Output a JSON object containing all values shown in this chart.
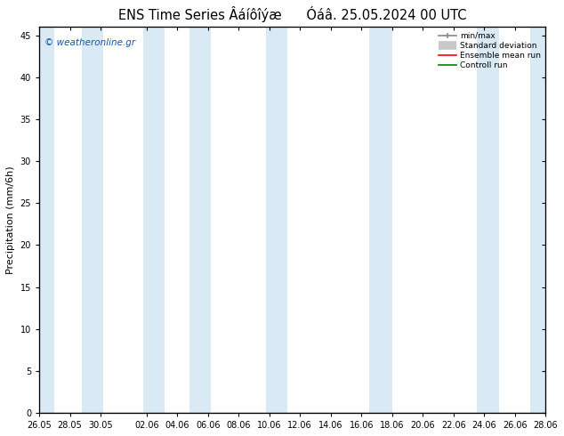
{
  "title": "ENS Time Series Âáíôîýæ      Óáâ. 25.05.2024 00 UTC",
  "ylabel": "Precipitation (mm/6h)",
  "ylim": [
    0,
    46
  ],
  "yticks": [
    0,
    5,
    10,
    15,
    20,
    25,
    30,
    35,
    40,
    45
  ],
  "xtick_labels": [
    "26.05",
    "28.05",
    "30.05",
    "02.06",
    "04.06",
    "06.06",
    "08.06",
    "10.06",
    "12.06",
    "14.06",
    "16.06",
    "18.06",
    "20.06",
    "22.06",
    "24.06",
    "26.06",
    "28.06"
  ],
  "xtick_positions": [
    0,
    2,
    4,
    7,
    9,
    11,
    13,
    15,
    17,
    19,
    21,
    23,
    25,
    27,
    29,
    31,
    33
  ],
  "xmin": 0,
  "xmax": 33,
  "band_color": "#daeaf5",
  "background_color": "#ffffff",
  "watermark": "© weatheronline.gr",
  "title_fontsize": 10.5,
  "tick_fontsize": 7,
  "ylabel_fontsize": 8,
  "band_positions": [
    [
      0.0,
      1.0
    ],
    [
      2.8,
      4.2
    ],
    [
      6.8,
      8.2
    ],
    [
      9.8,
      11.2
    ],
    [
      14.8,
      16.2
    ],
    [
      21.5,
      23.0
    ],
    [
      28.5,
      30.0
    ],
    [
      32.0,
      33.0
    ]
  ]
}
